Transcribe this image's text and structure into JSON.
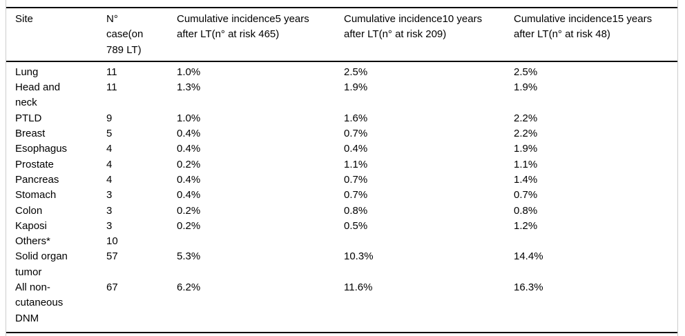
{
  "table": {
    "headers": [
      "Site",
      "N° case(on 789 LT)",
      "Cumulative incidence5 years after LT(n° at risk 465)",
      "Cumulative incidence10 years after LT(n° at risk 209)",
      "Cumulative incidence15 years after LT(n° at risk 48)"
    ],
    "rows": [
      {
        "site": "Lung",
        "n_case": "11",
        "inc_5y": "1.0%",
        "inc_10y": "2.5%",
        "inc_15y": "2.5%"
      },
      {
        "site": "Head and neck",
        "n_case": "11",
        "inc_5y": "1.3%",
        "inc_10y": "1.9%",
        "inc_15y": "1.9%"
      },
      {
        "site": "PTLD",
        "n_case": "9",
        "inc_5y": "1.0%",
        "inc_10y": "1.6%",
        "inc_15y": "2.2%"
      },
      {
        "site": "Breast",
        "n_case": "5",
        "inc_5y": "0.4%",
        "inc_10y": "0.7%",
        "inc_15y": "2.2%"
      },
      {
        "site": "Esophagus",
        "n_case": "4",
        "inc_5y": "0.4%",
        "inc_10y": "0.4%",
        "inc_15y": "1.9%"
      },
      {
        "site": "Prostate",
        "n_case": "4",
        "inc_5y": "0.2%",
        "inc_10y": "1.1%",
        "inc_15y": "1.1%"
      },
      {
        "site": "Pancreas",
        "n_case": "4",
        "inc_5y": "0.4%",
        "inc_10y": "0.7%",
        "inc_15y": "1.4%"
      },
      {
        "site": "Stomach",
        "n_case": "3",
        "inc_5y": "0.4%",
        "inc_10y": "0.7%",
        "inc_15y": "0.7%"
      },
      {
        "site": "Colon",
        "n_case": "3",
        "inc_5y": "0.2%",
        "inc_10y": "0.8%",
        "inc_15y": "0.8%"
      },
      {
        "site": "Kaposi",
        "n_case": "3",
        "inc_5y": "0.2%",
        "inc_10y": "0.5%",
        "inc_15y": "1.2%"
      },
      {
        "site": "Others*",
        "n_case": "10",
        "inc_5y": "",
        "inc_10y": "",
        "inc_15y": ""
      },
      {
        "site": "Solid organ tumor",
        "n_case": "57",
        "inc_5y": "5.3%",
        "inc_10y": "10.3%",
        "inc_15y": "14.4%"
      },
      {
        "site": "All non-cutaneous DNM",
        "n_case": "67",
        "inc_5y": "6.2%",
        "inc_10y": "11.6%",
        "inc_15y": "16.3%"
      }
    ]
  },
  "colors": {
    "text": "#000000",
    "rule": "#000000",
    "frame": "#cccccc",
    "background": "#ffffff"
  }
}
